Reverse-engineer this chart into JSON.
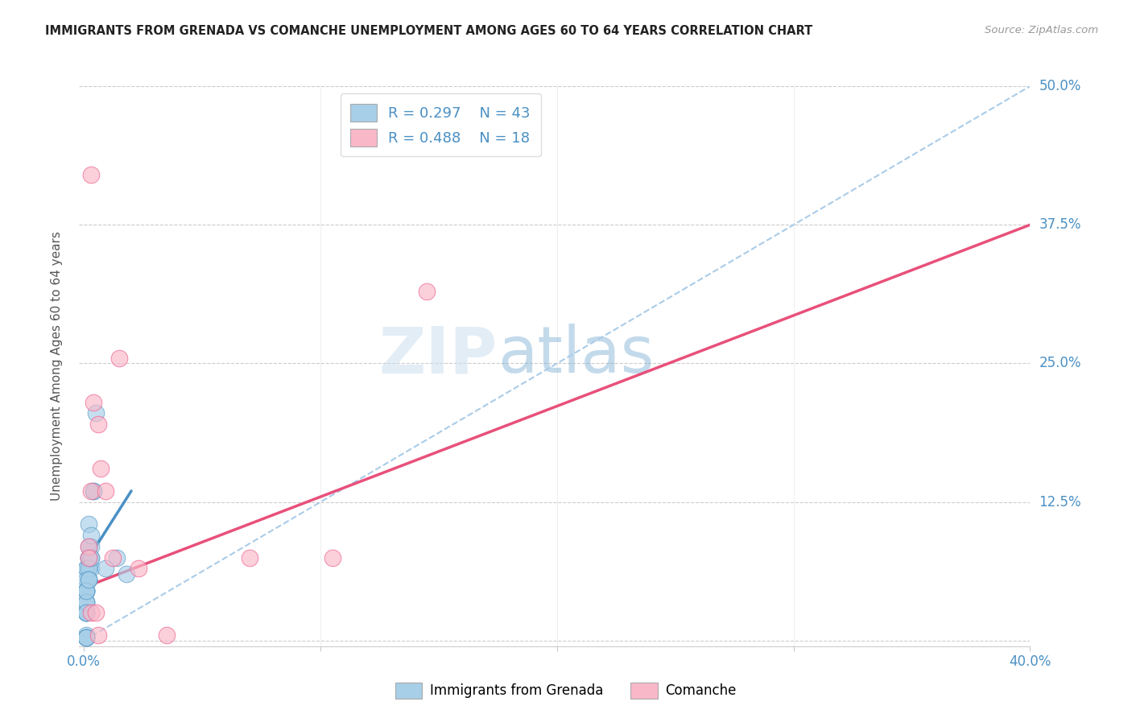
{
  "title": "IMMIGRANTS FROM GRENADA VS COMANCHE UNEMPLOYMENT AMONG AGES 60 TO 64 YEARS CORRELATION CHART",
  "source": "Source: ZipAtlas.com",
  "ylabel": "Unemployment Among Ages 60 to 64 years",
  "xlim": [
    -0.002,
    0.4
  ],
  "ylim": [
    -0.005,
    0.5
  ],
  "xticks": [
    0.0,
    0.1,
    0.2,
    0.3,
    0.4
  ],
  "xtick_labels": [
    "0.0%",
    "",
    "",
    "",
    "40.0%"
  ],
  "ytick_labels": [
    "50.0%",
    "37.5%",
    "25.0%",
    "12.5%",
    ""
  ],
  "yticks": [
    0.5,
    0.375,
    0.25,
    0.125,
    0.0
  ],
  "watermark_zip": "ZIP",
  "watermark_atlas": "atlas",
  "legend_R1": "R = 0.297",
  "legend_N1": "N = 43",
  "legend_R2": "R = 0.488",
  "legend_N2": "N = 18",
  "color_blue": "#a8cfe8",
  "color_pink": "#f9b8c8",
  "color_blue_dark": "#5b9dc9",
  "color_pink_dark": "#f06090",
  "color_blue_line": "#4a90c4",
  "color_pink_line": "#e8507a",
  "color_dashed": "#aacce8",
  "title_color": "#222222",
  "axis_label_color": "#555555",
  "tick_color_blue": "#4a90c4",
  "blue_scatter_x": [
    0.003,
    0.002,
    0.001,
    0.001,
    0.003,
    0.002,
    0.002,
    0.001,
    0.002,
    0.005,
    0.001,
    0.001,
    0.002,
    0.003,
    0.001,
    0.001,
    0.004,
    0.002,
    0.001,
    0.001,
    0.003,
    0.002,
    0.001,
    0.001,
    0.004,
    0.001,
    0.001,
    0.002,
    0.001,
    0.002,
    0.001,
    0.003,
    0.001,
    0.002,
    0.014,
    0.018,
    0.001,
    0.001,
    0.001,
    0.009,
    0.001,
    0.001,
    0.001
  ],
  "blue_scatter_y": [
    0.085,
    0.075,
    0.065,
    0.045,
    0.065,
    0.085,
    0.055,
    0.035,
    0.075,
    0.205,
    0.025,
    0.065,
    0.055,
    0.075,
    0.025,
    0.045,
    0.135,
    0.105,
    0.055,
    0.025,
    0.095,
    0.075,
    0.045,
    0.035,
    0.135,
    0.045,
    0.025,
    0.065,
    0.035,
    0.055,
    0.025,
    0.075,
    0.045,
    0.055,
    0.075,
    0.06,
    0.005,
    0.003,
    0.003,
    0.065,
    0.003,
    0.003,
    0.003
  ],
  "pink_scatter_x": [
    0.002,
    0.002,
    0.003,
    0.006,
    0.004,
    0.007,
    0.003,
    0.009,
    0.012,
    0.015,
    0.023,
    0.035,
    0.003,
    0.005,
    0.145,
    0.105,
    0.07,
    0.006
  ],
  "pink_scatter_y": [
    0.085,
    0.075,
    0.135,
    0.195,
    0.215,
    0.155,
    0.42,
    0.135,
    0.075,
    0.255,
    0.065,
    0.005,
    0.025,
    0.025,
    0.315,
    0.075,
    0.075,
    0.005
  ],
  "blue_line_x": [
    0.0,
    0.02
  ],
  "blue_line_y": [
    0.068,
    0.135
  ],
  "pink_line_x": [
    0.0,
    0.4
  ],
  "pink_line_y": [
    0.048,
    0.375
  ],
  "dashed_line_x": [
    0.0,
    0.4
  ],
  "dashed_line_y": [
    0.0,
    0.5
  ]
}
